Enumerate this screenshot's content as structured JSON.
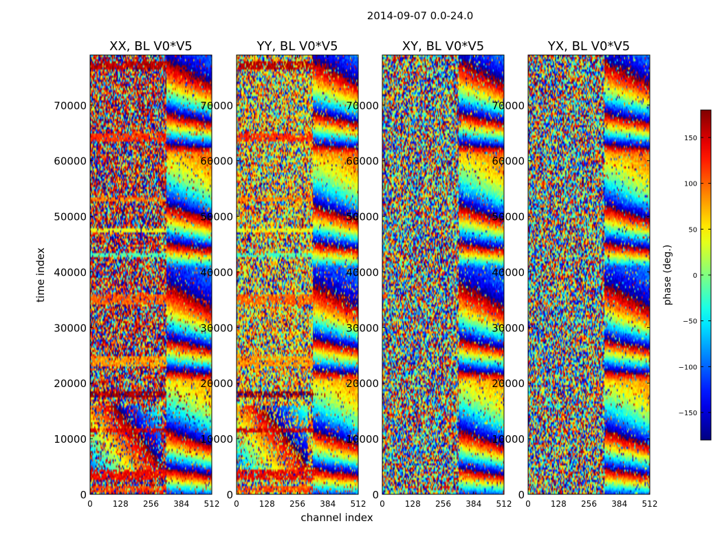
{
  "chart_data": {
    "type": "heatmap",
    "suptitle": "2014-09-07 0.0-24.0",
    "xlabel": "channel index",
    "ylabel": "time index",
    "xlim": [
      0,
      512
    ],
    "ylim": [
      0,
      79000
    ],
    "x_ticks": [
      0,
      128,
      256,
      384,
      512
    ],
    "y_ticks": [
      0,
      10000,
      20000,
      30000,
      40000,
      50000,
      60000,
      70000
    ],
    "panels": [
      {
        "title": "XX, BL V0*V5",
        "pol": "XX",
        "structured": true,
        "base_phase": 150
      },
      {
        "title": "YY, BL V0*V5",
        "pol": "YY",
        "structured": true,
        "base_phase": 60
      },
      {
        "title": "XY, BL V0*V5",
        "pol": "XY",
        "structured": false,
        "base_phase": 0
      },
      {
        "title": "YX, BL V0*V5",
        "pol": "YX",
        "structured": false,
        "base_phase": 0
      }
    ],
    "colorbar": {
      "label": "phase (deg.)",
      "vmin": -180,
      "vmax": 180,
      "ticks": [
        -150,
        -100,
        -50,
        0,
        50,
        100,
        150
      ],
      "tick_labels": [
        "−150",
        "−100",
        "−50",
        "0",
        "50",
        "100",
        "150"
      ],
      "colormap": "jet"
    },
    "bands": [
      {
        "t0": 76500,
        "t1": 78000,
        "phase": 160
      },
      {
        "t0": 63500,
        "t1": 65000,
        "phase": 120
      },
      {
        "t0": 52500,
        "t1": 53500,
        "phase": 90
      },
      {
        "t0": 47000,
        "t1": 47800,
        "phase": 40
      },
      {
        "t0": 42500,
        "t1": 43500,
        "phase": -20
      },
      {
        "t0": 34000,
        "t1": 36000,
        "phase": 100
      },
      {
        "t0": 23000,
        "t1": 25000,
        "phase": 80
      },
      {
        "t0": 17500,
        "t1": 18500,
        "phase": 170
      },
      {
        "t0": 11000,
        "t1": 12000,
        "phase": 150
      },
      {
        "t0": 2500,
        "t1": 4500,
        "phase": 140
      },
      {
        "t0": 500,
        "t1": 1500,
        "phase": 110
      }
    ]
  }
}
